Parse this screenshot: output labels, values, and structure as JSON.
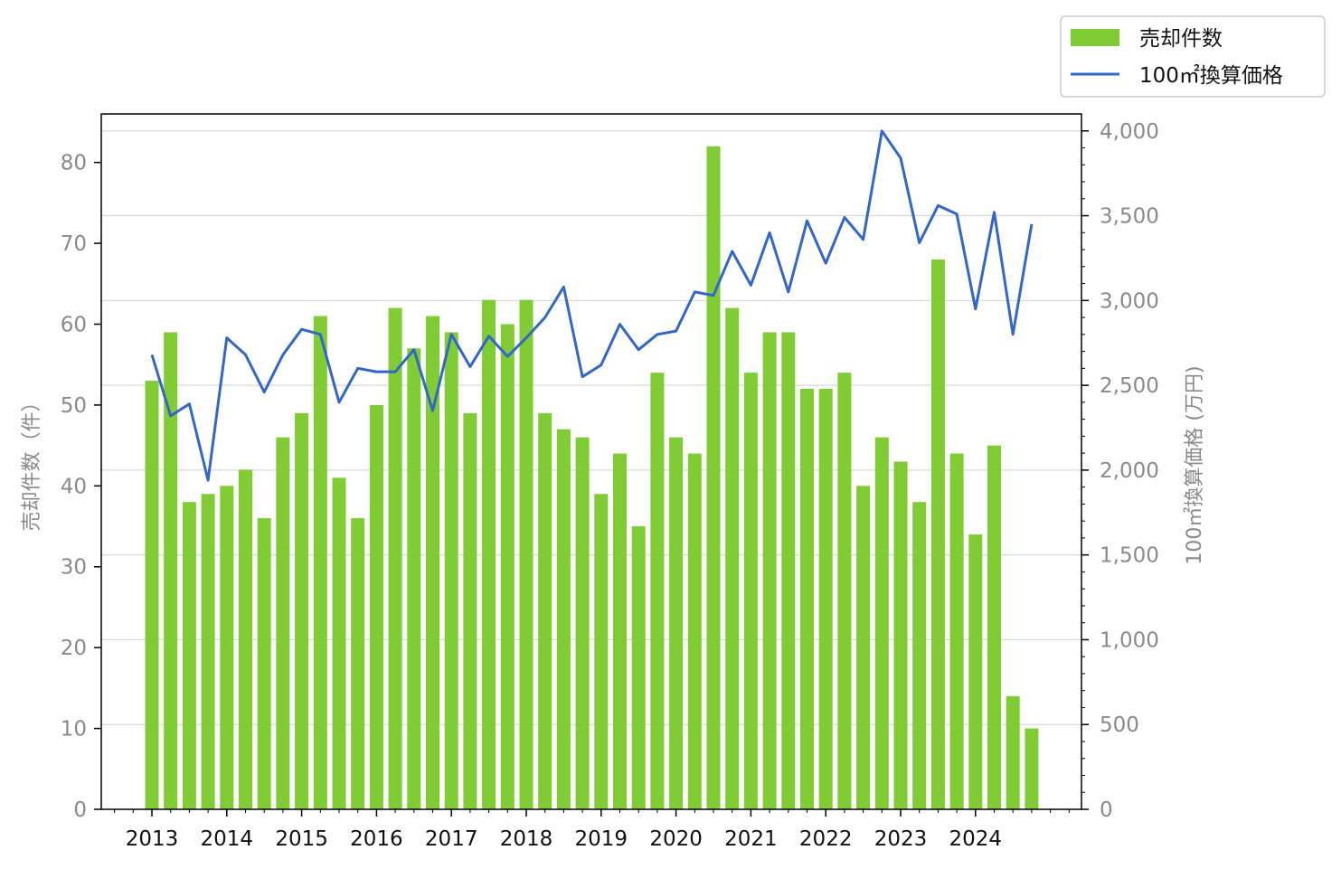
{
  "chart_data": {
    "type": "bar+line",
    "colors": {
      "bar": "#80cc33",
      "line": "#3366cc",
      "grid": "#d9d9d9"
    },
    "x_tick_labels": [
      "2013",
      "2014",
      "2015",
      "2016",
      "2017",
      "2018",
      "2019",
      "2020",
      "2021",
      "2022",
      "2023",
      "2024"
    ],
    "left_axis": {
      "label": "売却件数（件）",
      "ylim": [
        0,
        86
      ],
      "ticks": [
        0,
        10,
        20,
        30,
        40,
        50,
        60,
        70,
        80
      ],
      "tick_labels": [
        "0",
        "10",
        "20",
        "30",
        "40",
        "50",
        "60",
        "70",
        "80"
      ]
    },
    "right_axis": {
      "label": "100㎡換算価格 (万円)",
      "ylim": [
        0,
        4100
      ],
      "ticks": [
        0,
        500,
        1000,
        1500,
        2000,
        2500,
        3000,
        3500,
        4000
      ],
      "tick_labels": [
        "0",
        "500",
        "1,000",
        "1,500",
        "2,000",
        "2,500",
        "3,000",
        "3,500",
        "4,000"
      ]
    },
    "grid": "horizontal (right axis)",
    "legend": {
      "placement": "top-right, above plot"
    },
    "series": [
      {
        "name": "売却件数",
        "axis": "left",
        "type": "bar",
        "values": [
          53,
          59,
          38,
          39,
          40,
          42,
          36,
          46,
          49,
          61,
          41,
          36,
          50,
          62,
          57,
          61,
          59,
          49,
          63,
          60,
          63,
          49,
          47,
          46,
          39,
          44,
          35,
          54,
          46,
          44,
          82,
          62,
          54,
          59,
          59,
          52,
          52,
          54,
          40,
          46,
          43,
          38,
          68,
          44,
          34,
          45,
          14,
          10
        ]
      },
      {
        "name": "100㎡換算価格",
        "axis": "right",
        "type": "line",
        "values": [
          2680,
          2320,
          2390,
          1940,
          2780,
          2680,
          2460,
          2680,
          2830,
          2800,
          2400,
          2600,
          2580,
          2580,
          2710,
          2350,
          2800,
          2610,
          2790,
          2670,
          2780,
          2900,
          3080,
          2550,
          2620,
          2860,
          2710,
          2800,
          2820,
          3050,
          3030,
          3290,
          3090,
          3400,
          3050,
          3470,
          3220,
          3490,
          3360,
          4000,
          3840,
          3340,
          3560,
          3510,
          2950,
          3520,
          2800,
          3450
        ]
      }
    ]
  }
}
